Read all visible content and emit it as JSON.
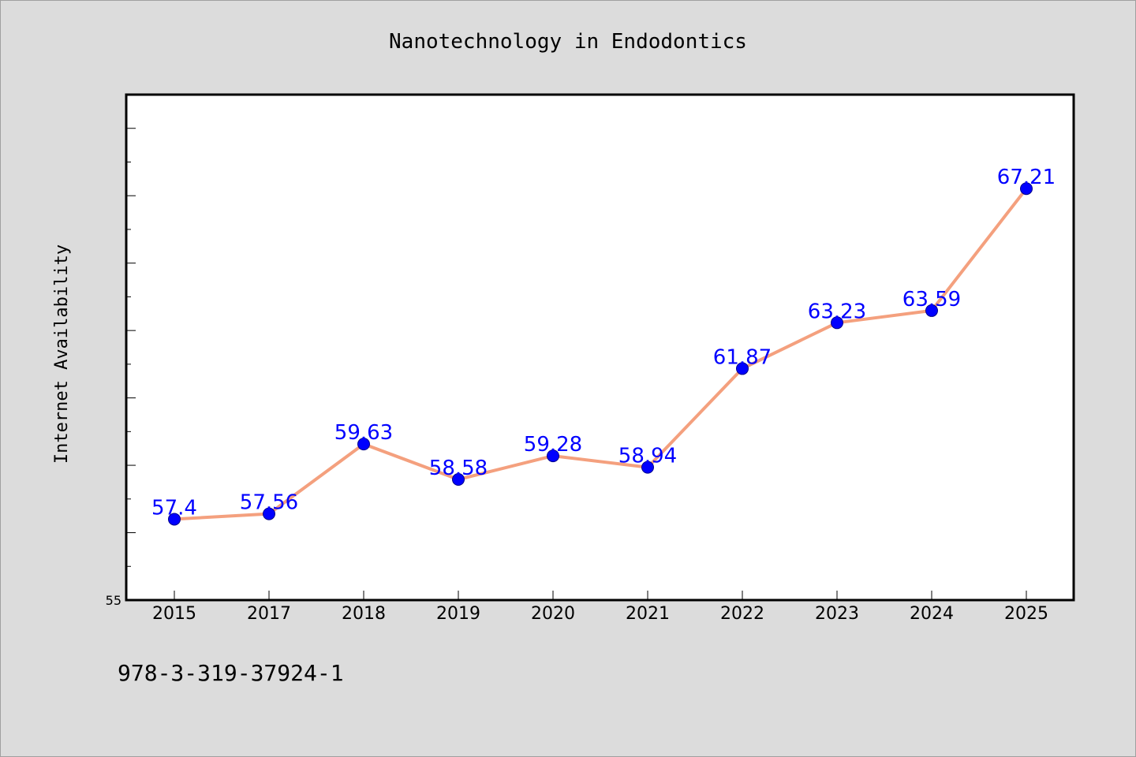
{
  "chart_data": {
    "type": "line",
    "title": "Nanotechnology in Endodontics",
    "xlabel": "",
    "ylabel": "Internet Availability",
    "categories": [
      "2015",
      "2017",
      "2018",
      "2019",
      "2020",
      "2021",
      "2022",
      "2023",
      "2024",
      "2025"
    ],
    "series": [
      {
        "values": [
          57.4,
          57.56,
          59.63,
          58.58,
          59.28,
          58.94,
          61.87,
          63.23,
          63.59,
          67.21
        ]
      }
    ],
    "data_labels": [
      "57.4",
      "57.56",
      "59.63",
      "58.58",
      "59.28",
      "58.94",
      "61.87",
      "63.23",
      "63.59",
      "67.21"
    ],
    "ylim": [
      55,
      70
    ],
    "y_tick_labels": [
      "55"
    ],
    "y_major_step": 2,
    "y_minor_step": 1,
    "grid": false,
    "legend": "none",
    "colors": {
      "line": "#f4a07e",
      "marker": "#0000ff",
      "label": "#0000ff",
      "plot_background": "#ffffff",
      "figure_background": "#dcdcdc"
    }
  },
  "footnote": "978-3-319-37924-1"
}
